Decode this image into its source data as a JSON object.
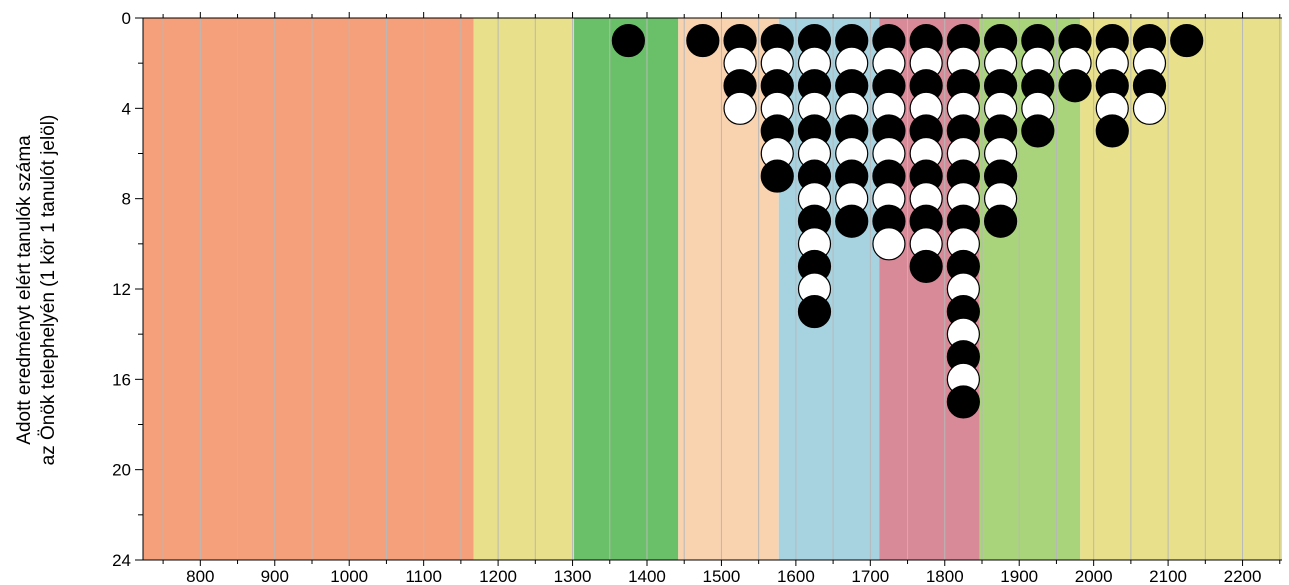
{
  "chart_data": {
    "type": "scatter",
    "ylabel_lines": [
      "Adott eredményt elért tanulók száma",
      "az Önök telephelyén (1 kör 1 tanulót jelöl)"
    ],
    "x_ticks": [
      "800",
      "900",
      "1000",
      "1100",
      "1200",
      "1300",
      "1400",
      "1500",
      "1600",
      "1700",
      "1800",
      "1900",
      "2000",
      "2100",
      "2200"
    ],
    "y_ticks": [
      "0",
      "4",
      "8",
      "12",
      "16",
      "20",
      "24"
    ],
    "xlim": [
      723,
      2253
    ],
    "ylim": [
      0,
      24
    ],
    "y_inverted": true,
    "grid": true,
    "bands": [
      {
        "from": 723,
        "to": 1167,
        "color": "#f5a07a"
      },
      {
        "from": 1167,
        "to": 1302,
        "color": "#e8e08a"
      },
      {
        "from": 1302,
        "to": 1442,
        "color": "#6abf69"
      },
      {
        "from": 1442,
        "to": 1577,
        "color": "#f9d3b0"
      },
      {
        "from": 1577,
        "to": 1712,
        "color": "#a7d3e1"
      },
      {
        "from": 1712,
        "to": 1847,
        "color": "#d88a98"
      },
      {
        "from": 1847,
        "to": 1982,
        "color": "#a9d47b"
      },
      {
        "from": 1982,
        "to": 2253,
        "color": "#e8e08a"
      }
    ],
    "columns": [
      {
        "x": 1375,
        "count": 1
      },
      {
        "x": 1475,
        "count": 1
      },
      {
        "x": 1525,
        "count": 4
      },
      {
        "x": 1575,
        "count": 7
      },
      {
        "x": 1625,
        "count": 13
      },
      {
        "x": 1675,
        "count": 9
      },
      {
        "x": 1725,
        "count": 10
      },
      {
        "x": 1775,
        "count": 11
      },
      {
        "x": 1825,
        "count": 17
      },
      {
        "x": 1875,
        "count": 9
      },
      {
        "x": 1925,
        "count": 5
      },
      {
        "x": 1975,
        "count": 3
      },
      {
        "x": 2025,
        "count": 5
      },
      {
        "x": 2075,
        "count": 4
      },
      {
        "x": 2125,
        "count": 1
      }
    ],
    "marker_colors": {
      "odd": "#000000",
      "even": "#ffffff",
      "stroke": "#000000"
    }
  }
}
